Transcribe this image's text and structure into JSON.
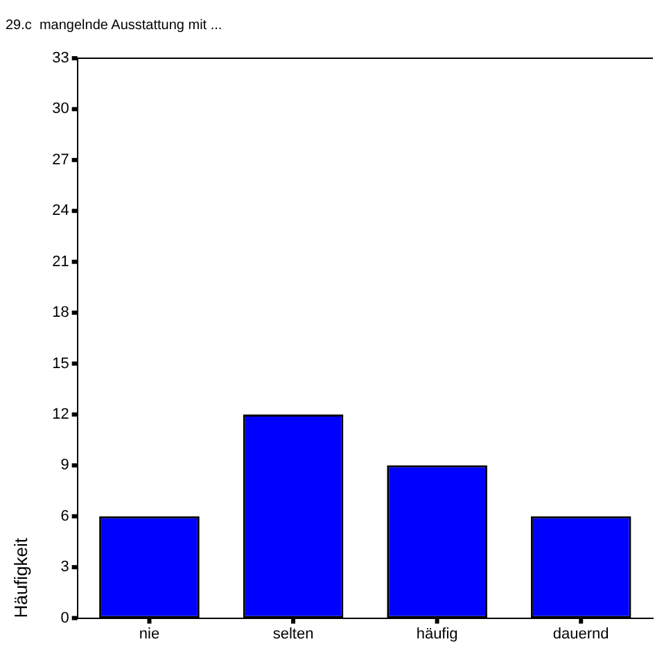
{
  "chart_data": {
    "type": "bar",
    "title": "29.c  mangelnde Ausstattung mit ...",
    "ylabel": "Häufigkeit",
    "categories": [
      "nie",
      "selten",
      "häufig",
      "dauernd"
    ],
    "values": [
      6,
      12,
      9,
      6
    ],
    "color": "#0000ff",
    "ylim": [
      0,
      33
    ],
    "yticks": [
      0,
      3,
      6,
      9,
      12,
      15,
      18,
      21,
      24,
      27,
      30,
      33
    ],
    "grid": false,
    "legend": false
  }
}
